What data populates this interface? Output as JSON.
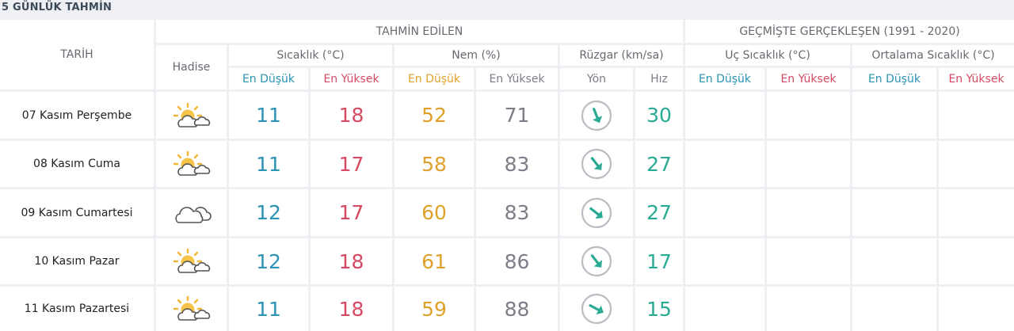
{
  "title": "5 GÜNLÜK TAHMİN",
  "header": {
    "tarih": "TARİH",
    "tahmin_edilen": "TAHMİN EDİLEN",
    "gecmiste": "GEÇMİŞTE GERÇEKLEŞEN (1991 - 2020)",
    "hadise": "Hadise",
    "sicaklik": "Sıcaklık (°C)",
    "nem": "Nem (%)",
    "ruzgar": "Rüzgar (km/sa)",
    "uc_sicaklik": "Uç Sıcaklık (°C)",
    "ortalama_sicaklik": "Ortalama Sıcaklık (°C)",
    "en_dusuk": "En Düşük",
    "en_yuksek": "En Yüksek",
    "yon": "Yön",
    "hiz": "Hız"
  },
  "colors": {
    "min_temp": "#2b93b4",
    "max_temp": "#d54a62",
    "humidity_min": "#e0a12a",
    "humidity_max": "#7b7e86",
    "wind": "#29aa93"
  },
  "rows": [
    {
      "date": "07 Kasım Perşembe",
      "icon": "partly-cloudy-icon",
      "temp_min": "11",
      "temp_max": "18",
      "hum_min": "52",
      "hum_max": "71",
      "wind_dir": "wind-direction-icon",
      "wind_speed": "30"
    },
    {
      "date": "08 Kasım Cuma",
      "icon": "partly-cloudy-icon",
      "temp_min": "11",
      "temp_max": "17",
      "hum_min": "58",
      "hum_max": "83",
      "wind_dir": "wind-direction-icon",
      "wind_speed": "27"
    },
    {
      "date": "09 Kasım Cumartesi",
      "icon": "cloudy-icon",
      "temp_min": "12",
      "temp_max": "17",
      "hum_min": "60",
      "hum_max": "83",
      "wind_dir": "wind-direction-icon",
      "wind_speed": "27"
    },
    {
      "date": "10 Kasım Pazar",
      "icon": "partly-cloudy-icon",
      "temp_min": "12",
      "temp_max": "18",
      "hum_min": "61",
      "hum_max": "86",
      "wind_dir": "wind-direction-icon",
      "wind_speed": "17"
    },
    {
      "date": "11 Kasım Pazartesi",
      "icon": "partly-cloudy-icon",
      "temp_min": "11",
      "temp_max": "18",
      "hum_min": "59",
      "hum_max": "88",
      "wind_dir": "wind-direction-icon",
      "wind_speed": "15"
    }
  ]
}
